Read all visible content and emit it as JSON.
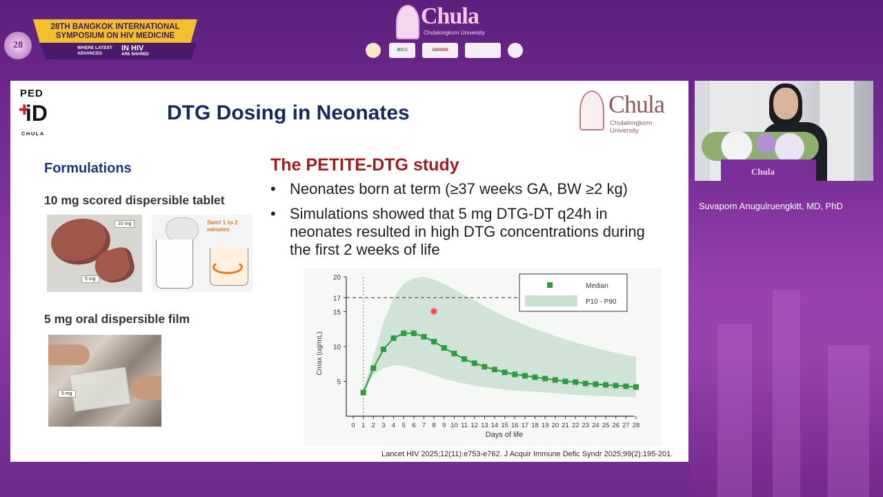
{
  "header": {
    "symposium_line1": "28TH BANGKOK INTERNATIONAL",
    "symposium_line2": "SYMPOSIUM ON  HIV MEDICINE",
    "tagline_small1": "WHERE LATEST",
    "tagline_small2": "ADVANCES",
    "tagline_big": "IN HIV",
    "tagline_small3": "ARE SHARED",
    "logo_28": "28",
    "chula_word": "Chula",
    "chula_sub": "Chulalongkorn University",
    "sponsor_labels": [
      "",
      "MICU",
      "AIDSNO",
      "",
      ""
    ]
  },
  "slide": {
    "ped_logo_top": "PED",
    "ped_logo_mid": "iD",
    "ped_logo_bottom": "CHULA",
    "title": "DTG Dosing in Neonates",
    "chula_word": "Chula",
    "chula_sub": "Chulalongkorn University",
    "formulations_heading": "Formulations",
    "tablet_label": "10 mg scored dispersible tablet",
    "tablet_tag_10": "10 mg",
    "tablet_tag_5": "5 mg",
    "swirl_text": "Swirl 1 to 2 minutes",
    "film_label": "5 mg oral dispersible film",
    "film_tag": "5 mg",
    "study_title": "The PETITE-DTG study",
    "bullets": [
      "Neonates born at term (≥37 weeks GA, BW ≥2 kg)",
      "Simulations showed that 5 mg DTG-DT q24h in neonates resulted in high DTG concentrations during the first 2 weeks of life"
    ],
    "citation": "Lancet HIV 2025;12(11):e753-e762. J Acquir Immune Defic Syndr 2025;99(2):195-201."
  },
  "speaker": {
    "name": "Suvaporn Anugulruengkitt, MD, PhD",
    "podium_logo": "Chula"
  },
  "colors": {
    "title_navy": "#17285a",
    "study_red": "#9b1d21",
    "series_green": "#2e9b3e",
    "band_green": "#c9dfd0",
    "background_purple": "#7a2f98"
  },
  "chart_data": {
    "type": "line",
    "xlabel": "Days of life",
    "ylabel": "Cmax (ug/mL)",
    "xlim": [
      0,
      28
    ],
    "ylim": [
      0,
      20
    ],
    "x_ticks": [
      0,
      1,
      2,
      3,
      4,
      5,
      6,
      7,
      8,
      9,
      10,
      11,
      12,
      13,
      14,
      15,
      16,
      17,
      18,
      19,
      20,
      21,
      22,
      23,
      24,
      25,
      26,
      27,
      28
    ],
    "y_ticks": [
      5,
      10,
      15,
      17,
      20
    ],
    "reference_line": 17,
    "vertical_reference_x": 1,
    "legend": [
      "Median",
      "P10 - P90"
    ],
    "legend_position": "top-right",
    "series": [
      {
        "name": "Median",
        "x": [
          1,
          2,
          3,
          4,
          5,
          6,
          7,
          8,
          9,
          10,
          11,
          12,
          13,
          14,
          15,
          16,
          17,
          18,
          19,
          20,
          21,
          22,
          23,
          24,
          25,
          26,
          27,
          28
        ],
        "values": [
          3.4,
          6.9,
          9.6,
          11.2,
          11.9,
          11.9,
          11.4,
          10.7,
          9.8,
          9.0,
          8.2,
          7.6,
          7.1,
          6.7,
          6.3,
          6.0,
          5.8,
          5.6,
          5.4,
          5.2,
          5.0,
          4.9,
          4.7,
          4.6,
          4.5,
          4.4,
          4.3,
          4.2
        ]
      }
    ],
    "band": {
      "name": "P10 - P90",
      "x": [
        1,
        2,
        3,
        4,
        5,
        6,
        7,
        8,
        9,
        10,
        11,
        12,
        13,
        14,
        15,
        16,
        17,
        18,
        19,
        20,
        21,
        22,
        23,
        24,
        25,
        26,
        27,
        28
      ],
      "lower": [
        3.0,
        6.0,
        6.9,
        7.3,
        7.2,
        6.8,
        6.4,
        5.9,
        5.4,
        5.0,
        4.7,
        4.4,
        4.2,
        4.0,
        3.8,
        3.7,
        3.6,
        3.5,
        3.4,
        3.3,
        3.2,
        3.1,
        3.0,
        2.9,
        2.9,
        2.8,
        2.8,
        2.7
      ],
      "upper": [
        3.8,
        8.5,
        13.5,
        17.0,
        19.0,
        19.8,
        20.0,
        19.6,
        19.0,
        18.2,
        17.4,
        16.6,
        15.8,
        15.0,
        14.3,
        13.7,
        13.1,
        12.5,
        12.0,
        11.5,
        11.0,
        10.6,
        10.2,
        9.8,
        9.4,
        9.1,
        8.8,
        8.5
      ]
    }
  }
}
